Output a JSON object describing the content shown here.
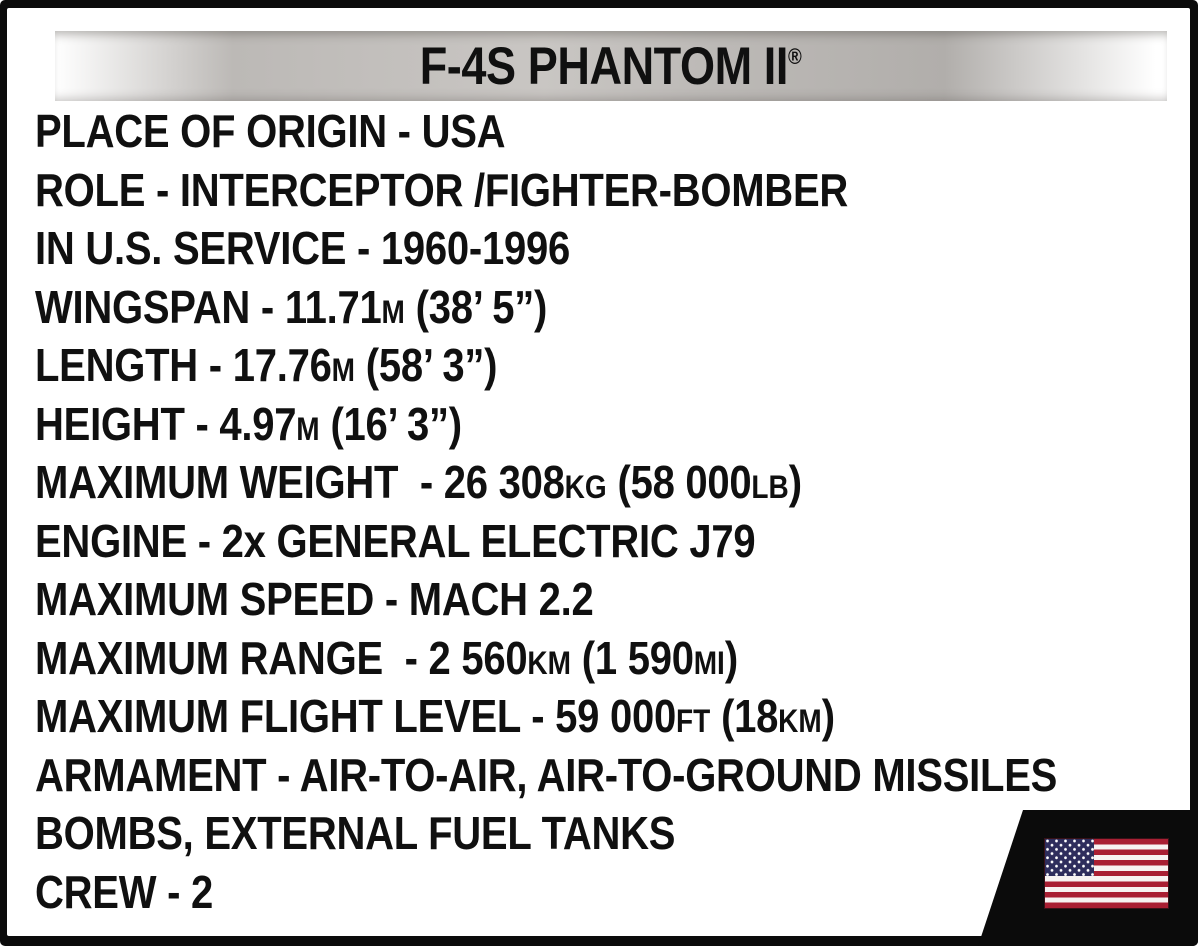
{
  "title": {
    "text": "F-4S PHANTOM II",
    "registered_mark": "®"
  },
  "specs": {
    "lines": [
      {
        "parts": [
          {
            "text": "PLACE OF ORIGIN - USA"
          }
        ]
      },
      {
        "parts": [
          {
            "text": "ROLE - INTERCEPTOR /FIGHTER-BOMBER"
          }
        ]
      },
      {
        "parts": [
          {
            "text": "IN U.S. SERVICE - 1960-1996"
          }
        ]
      },
      {
        "parts": [
          {
            "text": "WINGSPAN - 11.71"
          },
          {
            "text": "M",
            "unit": true
          },
          {
            "text": " (38’ 5”)"
          }
        ]
      },
      {
        "parts": [
          {
            "text": "LENGTH - 17.76"
          },
          {
            "text": "M",
            "unit": true
          },
          {
            "text": " (58’ 3”)"
          }
        ]
      },
      {
        "parts": [
          {
            "text": "HEIGHT - 4.97"
          },
          {
            "text": "M",
            "unit": true
          },
          {
            "text": " (16’ 3”)"
          }
        ]
      },
      {
        "parts": [
          {
            "text": "MAXIMUM WEIGHT  - 26 308"
          },
          {
            "text": "KG",
            "unit": true
          },
          {
            "text": " (58 000"
          },
          {
            "text": "LB",
            "unit": true
          },
          {
            "text": ")"
          }
        ]
      },
      {
        "parts": [
          {
            "text": "ENGINE - 2x GENERAL ELECTRIC J79"
          }
        ]
      },
      {
        "parts": [
          {
            "text": "MAXIMUM SPEED - MACH 2.2"
          }
        ]
      },
      {
        "parts": [
          {
            "text": "MAXIMUM RANGE  - 2 560"
          },
          {
            "text": "KM",
            "unit": true
          },
          {
            "text": " (1 590"
          },
          {
            "text": "MI",
            "unit": true
          },
          {
            "text": ")"
          }
        ]
      },
      {
        "parts": [
          {
            "text": "MAXIMUM FLIGHT LEVEL - 59 000"
          },
          {
            "text": "FT",
            "unit": true
          },
          {
            "text": " (18"
          },
          {
            "text": "KM",
            "unit": true
          },
          {
            "text": ")"
          }
        ]
      },
      {
        "parts": [
          {
            "text": "ARMAMENT - AIR-TO-AIR, AIR-TO-GROUND MISSILES"
          }
        ]
      },
      {
        "parts": [
          {
            "text": "BOMBS, EXTERNAL FUEL TANKS"
          }
        ]
      },
      {
        "parts": [
          {
            "text": "CREW - 2"
          }
        ]
      }
    ]
  },
  "flag": {
    "name": "usa-flag",
    "stripe_count": 13
  },
  "colors": {
    "frame_black": "#0b0b0b",
    "panel_white": "#ffffff",
    "text_black": "#101010",
    "bar_silver_mid": "#c9c6c3",
    "bar_silver_deep": "#b1aeab",
    "flag_red": "#a91f33",
    "flag_white": "#f7f3f2",
    "flag_navy": "#2e2d5c"
  }
}
